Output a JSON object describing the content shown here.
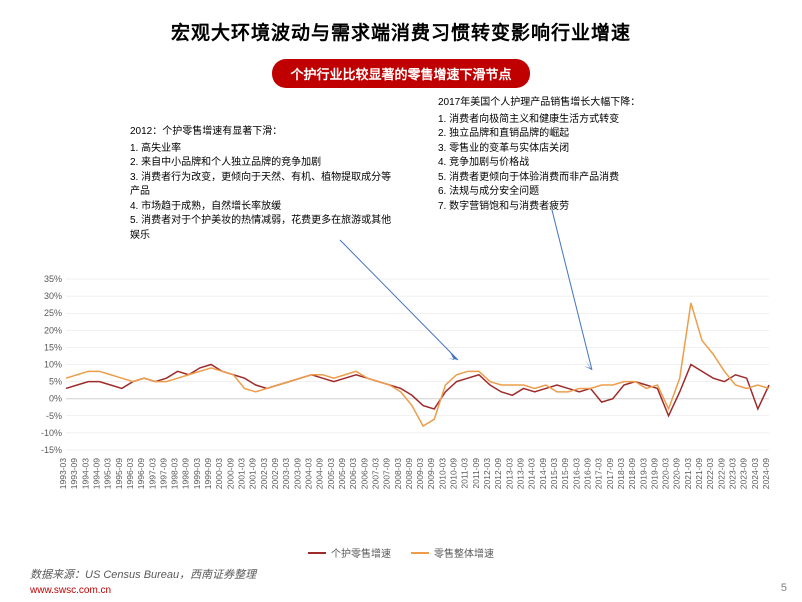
{
  "title": "宏观大环境波动与需求端消费习惯转变影响行业增速",
  "subtitle": "个护行业比较显著的零售增速下滑节点",
  "annotation_left": {
    "header": "2012：个护零售增速有显著下滑：",
    "points": [
      "1. 高失业率",
      "2. 来自中小品牌和个人独立品牌的竞争加剧",
      "3. 消费者行为改变，更倾向于天然、有机、植物提取成分等产品",
      "4. 市场趋于成熟，自然增长率放缓",
      "5. 消费者对于个护美妆的热情减弱，花费更多在旅游或其他娱乐"
    ]
  },
  "annotation_right": {
    "header": "2017年美国个人护理产品销售增长大幅下降：",
    "points": [
      "1. 消费者向极简主义和健康生活方式转变",
      "2. 独立品牌和直销品牌的崛起",
      "3. 零售业的变革与实体店关闭",
      "4. 竞争加剧与价格战",
      "5. 消费者更倾向于体验消费而非产品消费",
      "6. 法规与成分安全问题",
      "7. 数字营销饱和与消费者疲劳"
    ]
  },
  "chart": {
    "type": "line",
    "background_color": "#ffffff",
    "grid_color": "#e0e0e0",
    "ylim": [
      -15,
      35
    ],
    "ytick_step": 5,
    "yticks": [
      -15,
      -10,
      -5,
      0,
      5,
      10,
      15,
      20,
      25,
      30,
      35
    ],
    "ytick_labels": [
      "-15%",
      "-10%",
      "-5%",
      "0%",
      "5%",
      "10%",
      "15%",
      "20%",
      "25%",
      "30%",
      "35%"
    ],
    "x_labels": [
      "1993-03",
      "1993-09",
      "1994-03",
      "1994-09",
      "1995-03",
      "1995-09",
      "1996-03",
      "1996-09",
      "1997-03",
      "1997-09",
      "1998-03",
      "1998-09",
      "1999-03",
      "1999-09",
      "2000-03",
      "2000-09",
      "2001-03",
      "2001-09",
      "2002-03",
      "2002-09",
      "2003-03",
      "2003-09",
      "2004-03",
      "2004-09",
      "2005-03",
      "2005-09",
      "2006-03",
      "2006-09",
      "2007-03",
      "2007-09",
      "2008-03",
      "2008-09",
      "2009-03",
      "2009-09",
      "2010-03",
      "2010-09",
      "2011-03",
      "2011-09",
      "2012-03",
      "2012-09",
      "2013-03",
      "2013-09",
      "2014-03",
      "2014-09",
      "2015-03",
      "2015-09",
      "2016-03",
      "2016-09",
      "2017-03",
      "2017-09",
      "2018-03",
      "2018-09",
      "2019-03",
      "2019-09",
      "2020-03",
      "2020-09",
      "2021-03",
      "2021-09",
      "2022-03",
      "2022-09",
      "2023-03",
      "2023-09",
      "2024-03",
      "2024-09"
    ],
    "series": [
      {
        "name": "个护零售增速",
        "color": "#9e2b2b",
        "values": [
          3,
          4,
          5,
          5,
          4,
          3,
          5,
          6,
          5,
          6,
          8,
          7,
          9,
          10,
          8,
          7,
          6,
          4,
          3,
          4,
          5,
          6,
          7,
          6,
          5,
          6,
          7,
          6,
          5,
          4,
          3,
          1,
          -2,
          -3,
          2,
          5,
          6,
          7,
          4,
          2,
          1,
          3,
          2,
          3,
          4,
          3,
          2,
          3,
          -1,
          0,
          4,
          5,
          4,
          3,
          -5,
          2,
          10,
          8,
          6,
          5,
          7,
          6,
          -3,
          4
        ]
      },
      {
        "name": "零售整体增速",
        "color": "#ed9d4a",
        "values": [
          6,
          7,
          8,
          8,
          7,
          6,
          5,
          6,
          5,
          5,
          6,
          7,
          8,
          9,
          8,
          7,
          3,
          2,
          3,
          4,
          5,
          6,
          7,
          7,
          6,
          7,
          8,
          6,
          5,
          4,
          2,
          -2,
          -8,
          -6,
          4,
          7,
          8,
          8,
          5,
          4,
          4,
          4,
          3,
          4,
          2,
          2,
          3,
          3,
          4,
          4,
          5,
          5,
          3,
          4,
          -3,
          6,
          28,
          17,
          13,
          8,
          4,
          3,
          4,
          3
        ]
      }
    ]
  },
  "legend": {
    "items": [
      {
        "label": "个护零售增速",
        "color": "#9e2b2b"
      },
      {
        "label": "零售整体增速",
        "color": "#ed9d4a"
      }
    ]
  },
  "source": "数据来源：US Census Bureau，西南证券整理",
  "url": "www.swsc.com.cn",
  "page_number": "5"
}
